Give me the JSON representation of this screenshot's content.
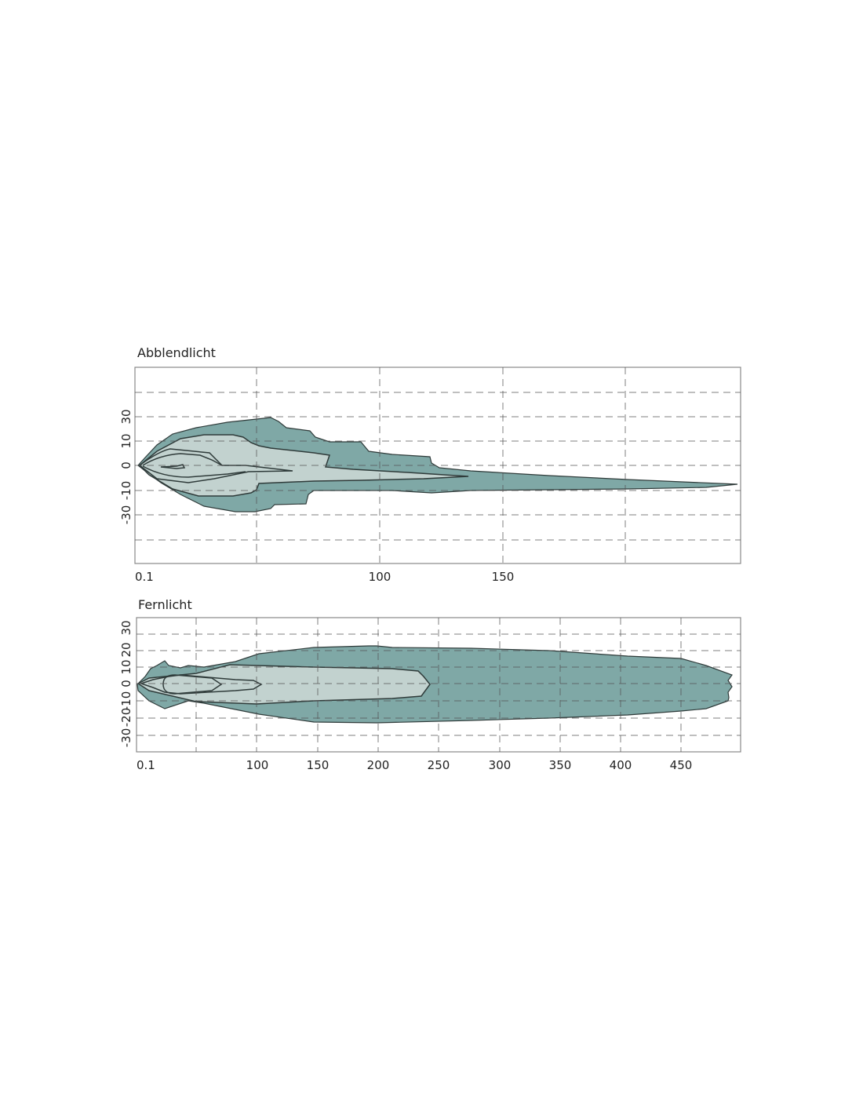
{
  "colors": {
    "outer_zone": "#7fa8a6",
    "inner_zone": "#c2d2cf",
    "contour_line": "#2f3b3a"
  },
  "chart_data": [
    {
      "type": "area",
      "title": "Abblendlicht",
      "x_ticks": [
        "0.1",
        "100",
        "150"
      ],
      "y_ticks": [
        "30",
        "10",
        "0",
        "-10",
        "-30"
      ],
      "grid": true,
      "contours": [
        {
          "zone": "outer",
          "reach_m": 245
        },
        {
          "zone": "middle",
          "reach_m": 137
        },
        {
          "zone": "inner",
          "reach_m": 65
        }
      ]
    },
    {
      "type": "area",
      "title": "Fernlicht",
      "x_ticks": [
        "0.1",
        "100",
        "150",
        "200",
        "250",
        "300",
        "350",
        "400",
        "450"
      ],
      "y_ticks": [
        "30",
        "20",
        "10",
        "0",
        "-10",
        "-20",
        "-30"
      ],
      "grid": true,
      "contours": [
        {
          "zone": "outer",
          "reach_m": 490
        },
        {
          "zone": "middle",
          "reach_m": 245
        },
        {
          "zone": "inner",
          "reach_m": 103
        }
      ]
    }
  ]
}
